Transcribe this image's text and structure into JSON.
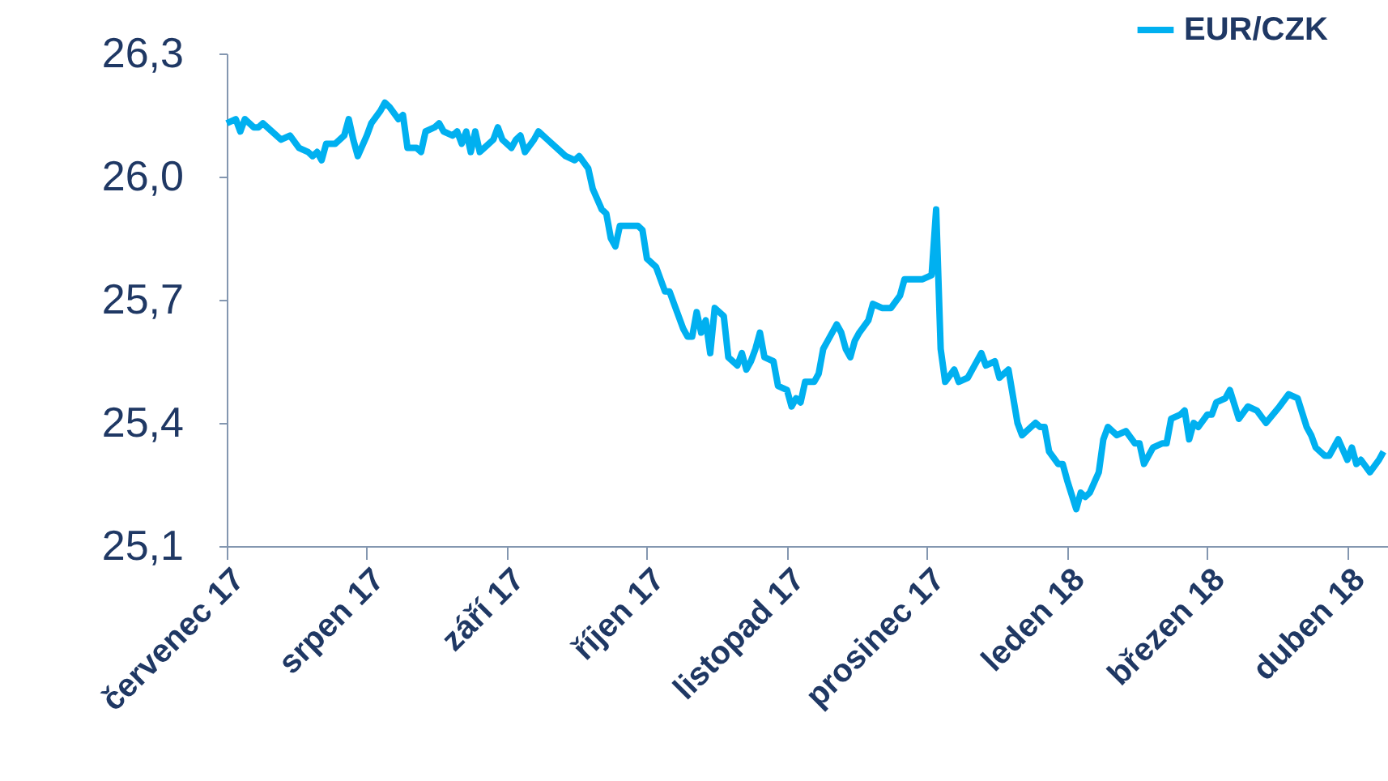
{
  "chart_data": {
    "type": "line",
    "x": [
      "2017-07-01",
      "2017-07-03",
      "2017-07-04",
      "2017-07-05",
      "2017-07-07",
      "2017-07-08",
      "2017-07-09",
      "2017-07-10",
      "2017-07-12",
      "2017-07-13",
      "2017-07-15",
      "2017-07-17",
      "2017-07-19",
      "2017-07-20",
      "2017-07-21",
      "2017-07-22",
      "2017-07-23",
      "2017-07-25",
      "2017-07-27",
      "2017-07-28",
      "2017-07-29",
      "2017-07-30",
      "2017-08-01",
      "2017-08-02",
      "2017-08-04",
      "2017-08-05",
      "2017-08-06",
      "2017-08-08",
      "2017-08-09",
      "2017-08-10",
      "2017-08-12",
      "2017-08-13",
      "2017-08-14",
      "2017-08-16",
      "2017-08-17",
      "2017-08-18",
      "2017-08-20",
      "2017-08-21",
      "2017-08-22",
      "2017-08-23",
      "2017-08-24",
      "2017-08-25",
      "2017-08-26",
      "2017-08-27",
      "2017-08-29",
      "2017-08-30",
      "2017-08-31",
      "2017-09-02",
      "2017-09-03",
      "2017-09-04",
      "2017-09-05",
      "2017-09-07",
      "2017-09-08",
      "2017-09-10",
      "2017-09-11",
      "2017-09-12",
      "2017-09-14",
      "2017-09-16",
      "2017-09-17",
      "2017-09-19",
      "2017-09-20",
      "2017-09-22",
      "2017-09-23",
      "2017-09-24",
      "2017-09-25",
      "2017-09-26",
      "2017-09-28",
      "2017-09-30",
      "2017-10-01",
      "2017-10-02",
      "2017-10-04",
      "2017-10-05",
      "2017-10-06",
      "2017-10-07",
      "2017-10-08",
      "2017-10-10",
      "2017-10-11",
      "2017-10-12",
      "2017-10-13",
      "2017-10-14",
      "2017-10-15",
      "2017-10-16",
      "2017-10-17",
      "2017-10-19",
      "2017-10-20",
      "2017-10-22",
      "2017-10-23",
      "2017-10-24",
      "2017-10-25",
      "2017-10-26",
      "2017-10-27",
      "2017-10-28",
      "2017-10-30",
      "2017-10-31",
      "2017-11-02",
      "2017-11-03",
      "2017-11-04",
      "2017-11-05",
      "2017-11-06",
      "2017-11-08",
      "2017-11-09",
      "2017-11-10",
      "2017-11-11",
      "2017-11-13",
      "2017-11-14",
      "2017-11-15",
      "2017-11-16",
      "2017-11-17",
      "2017-11-18",
      "2017-11-20",
      "2017-11-21",
      "2017-11-23",
      "2017-11-25",
      "2017-11-27",
      "2017-11-28",
      "2017-11-30",
      "2017-12-02",
      "2017-12-04",
      "2017-12-05",
      "2017-12-06",
      "2017-12-07",
      "2017-12-09",
      "2017-12-10",
      "2017-12-12",
      "2017-12-13",
      "2017-12-15",
      "2017-12-16",
      "2017-12-18",
      "2017-12-19",
      "2017-12-21",
      "2017-12-23",
      "2017-12-24",
      "2017-12-27",
      "2017-12-28",
      "2017-12-29",
      "2017-12-30",
      "2018-01-01",
      "2018-01-02",
      "2018-01-03",
      "2018-01-05",
      "2018-01-06",
      "2018-01-07",
      "2018-01-08",
      "2018-01-10",
      "2018-01-11",
      "2018-01-12",
      "2018-01-14",
      "2018-01-16",
      "2018-01-18",
      "2018-01-19",
      "2018-01-20",
      "2018-01-22",
      "2018-01-24",
      "2018-01-25",
      "2018-01-26",
      "2018-01-28",
      "2018-01-29",
      "2018-01-30",
      "2018-01-31",
      "2018-02-01",
      "2018-02-03",
      "2018-02-04",
      "2018-02-05",
      "2018-02-07",
      "2018-02-08",
      "2018-02-10",
      "2018-02-12",
      "2018-02-14",
      "2018-02-16",
      "2018-02-19",
      "2018-02-21",
      "2018-02-23",
      "2018-02-25",
      "2018-02-26",
      "2018-02-27",
      "2018-03-01",
      "2018-03-02",
      "2018-03-04",
      "2018-03-06",
      "2018-03-07",
      "2018-03-08",
      "2018-03-09",
      "2018-03-11",
      "2018-03-13",
      "2018-03-14"
    ],
    "series": [
      {
        "name": "EUR/CZK",
        "color": "#00b0f0",
        "values": [
          26.13,
          26.14,
          26.11,
          26.14,
          26.12,
          26.12,
          26.13,
          26.12,
          26.1,
          26.09,
          26.1,
          26.07,
          26.06,
          26.05,
          26.06,
          26.04,
          26.08,
          26.08,
          26.1,
          26.14,
          26.09,
          26.05,
          26.1,
          26.13,
          26.16,
          26.18,
          26.17,
          26.14,
          26.15,
          26.07,
          26.07,
          26.06,
          26.11,
          26.12,
          26.13,
          26.11,
          26.1,
          26.11,
          26.08,
          26.11,
          26.06,
          26.11,
          26.06,
          26.07,
          26.09,
          26.12,
          26.09,
          26.07,
          26.09,
          26.1,
          26.06,
          26.09,
          26.11,
          26.09,
          26.08,
          26.07,
          26.05,
          26.04,
          26.05,
          26.02,
          25.97,
          25.92,
          25.91,
          25.85,
          25.83,
          25.88,
          25.88,
          25.88,
          25.87,
          25.8,
          25.78,
          25.75,
          25.72,
          25.72,
          25.69,
          25.63,
          25.61,
          25.61,
          25.67,
          25.62,
          25.65,
          25.57,
          25.68,
          25.66,
          25.56,
          25.54,
          25.57,
          25.53,
          25.55,
          25.58,
          25.62,
          25.56,
          25.55,
          25.49,
          25.48,
          25.44,
          25.46,
          25.45,
          25.5,
          25.5,
          25.52,
          25.58,
          25.6,
          25.64,
          25.62,
          25.58,
          25.56,
          25.6,
          25.62,
          25.65,
          25.69,
          25.68,
          25.68,
          25.71,
          25.75,
          25.75,
          25.75,
          25.76,
          25.92,
          25.58,
          25.5,
          25.53,
          25.5,
          25.51,
          25.53,
          25.57,
          25.54,
          25.55,
          25.51,
          25.53,
          25.4,
          25.37,
          25.4,
          25.39,
          25.39,
          25.33,
          25.3,
          25.3,
          25.26,
          25.19,
          25.23,
          25.22,
          25.23,
          25.28,
          25.36,
          25.39,
          25.37,
          25.38,
          25.35,
          25.35,
          25.3,
          25.34,
          25.35,
          25.35,
          25.41,
          25.42,
          25.43,
          25.36,
          25.4,
          25.39,
          25.42,
          25.42,
          25.45,
          25.46,
          25.48,
          25.41,
          25.44,
          25.43,
          25.4,
          25.44,
          25.47,
          25.46,
          25.39,
          25.37,
          25.34,
          25.32,
          25.32,
          25.36,
          25.31,
          25.34,
          25.3,
          25.31,
          25.28,
          25.31,
          25.33
        ]
      }
    ],
    "xlim": [
      "2017-07-01",
      "2018-03-15"
    ],
    "xticks": [
      {
        "value": "2017-07-01",
        "label": "červenec 17"
      },
      {
        "value": "2017-08-01",
        "label": "srpen 17"
      },
      {
        "value": "2017-09-01",
        "label": "září 17"
      },
      {
        "value": "2017-10-02",
        "label": "říjen 17"
      },
      {
        "value": "2017-11-02",
        "label": "listopad 17"
      },
      {
        "value": "2017-12-03",
        "label": "prosinec 17"
      },
      {
        "value": "2018-01-03",
        "label": "leden 18"
      },
      {
        "value": "2018-02-03",
        "label": "březen 18"
      },
      {
        "value": "2018-03-06",
        "label": "duben 18"
      }
    ],
    "ylim": [
      25.1,
      26.3
    ],
    "yticks": [
      {
        "value": 25.1,
        "label": "25,1"
      },
      {
        "value": 25.4,
        "label": "25,4"
      },
      {
        "value": 25.7,
        "label": "25,7"
      },
      {
        "value": 26.0,
        "label": "26,0"
      },
      {
        "value": 26.3,
        "label": "26,3"
      }
    ],
    "grid": false,
    "legend": "top right",
    "marker": "none",
    "line_style": "solid"
  }
}
